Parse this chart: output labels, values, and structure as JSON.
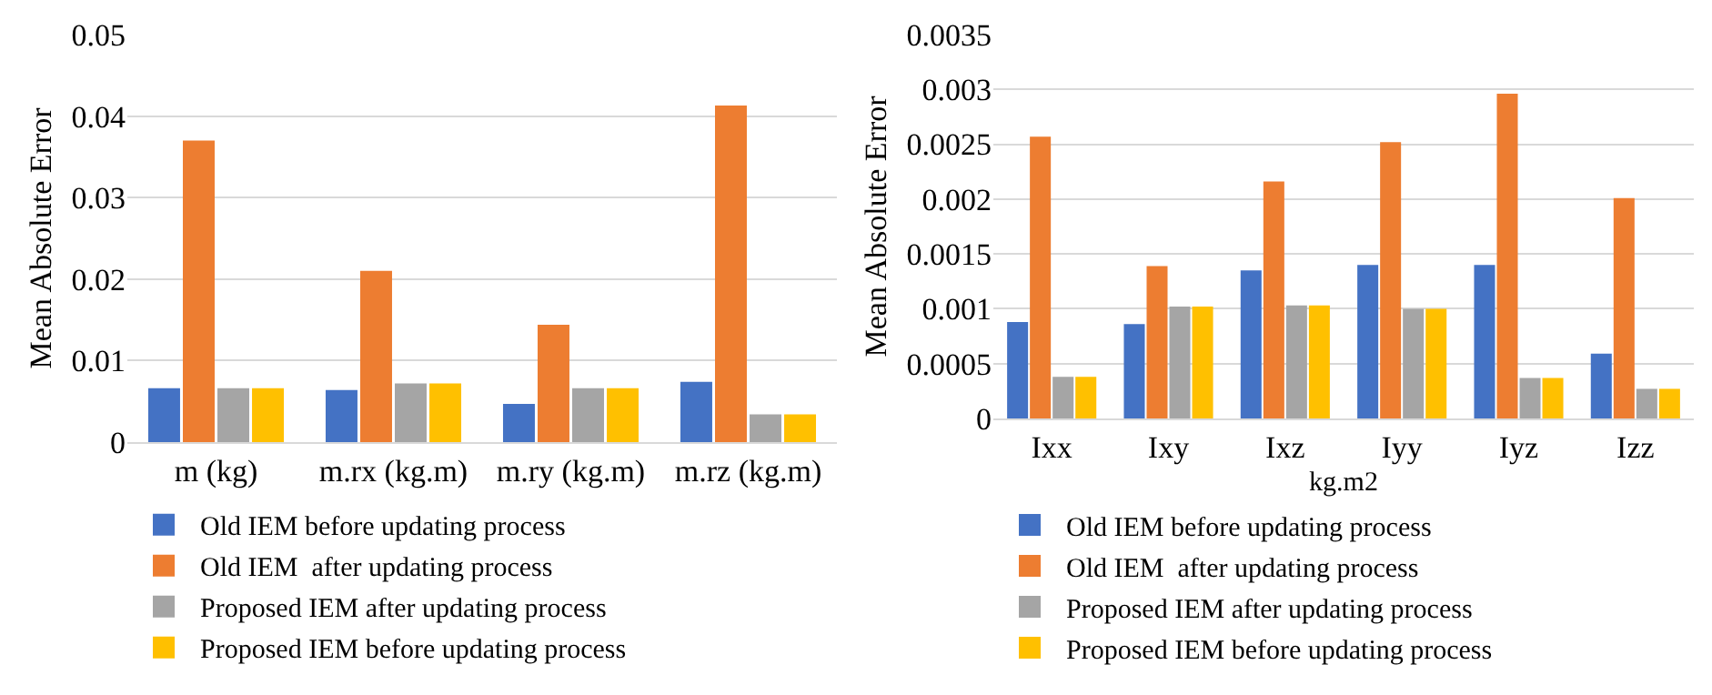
{
  "chart_data": [
    {
      "type": "bar",
      "ylabel": "Mean Absolute Error",
      "categories": [
        "m (kg)",
        "m.rx (kg.m)",
        "m.ry (kg.m)",
        "m.rz (kg.m)"
      ],
      "ylim": [
        0,
        0.05
      ],
      "yticks": [
        0,
        0.01,
        0.02,
        0.03,
        0.04,
        0.05
      ],
      "grid": "y",
      "legend": "bottom",
      "series": [
        {
          "name": "Old IEM before updating process",
          "color": "#4472c4",
          "values": [
            0.0066,
            0.0064,
            0.0047,
            0.0074
          ]
        },
        {
          "name": "Old IEM  after updating process",
          "color": "#ed7d31",
          "values": [
            0.037,
            0.021,
            0.0144,
            0.0413
          ]
        },
        {
          "name": "Proposed IEM after updating process",
          "color": "#a5a5a5",
          "values": [
            0.0066,
            0.0072,
            0.0066,
            0.0034
          ]
        },
        {
          "name": "Proposed IEM before updating process",
          "color": "#ffc000",
          "values": [
            0.0066,
            0.0072,
            0.0066,
            0.0034
          ]
        }
      ]
    },
    {
      "type": "bar",
      "ylabel": "Mean Absolute Error",
      "xlabel": "kg.m2",
      "categories": [
        "Ixx",
        "Ixy",
        "Ixz",
        "Iyy",
        "Iyz",
        "Izz"
      ],
      "ylim": [
        0,
        0.0035
      ],
      "yticks": [
        0,
        0.0005,
        0.001,
        0.0015,
        0.002,
        0.0025,
        0.003,
        0.0035
      ],
      "grid": "y",
      "legend": "bottom",
      "series": [
        {
          "name": "Old IEM before updating process",
          "color": "#4472c4",
          "values": [
            0.00088,
            0.00086,
            0.00135,
            0.0014,
            0.0014,
            0.00059
          ]
        },
        {
          "name": "Old IEM  after updating process",
          "color": "#ed7d31",
          "values": [
            0.00257,
            0.00139,
            0.00216,
            0.00252,
            0.00296,
            0.00201
          ]
        },
        {
          "name": "Proposed IEM after updating process",
          "color": "#a5a5a5",
          "values": [
            0.00038,
            0.00102,
            0.00103,
            0.001,
            0.00037,
            0.00027
          ]
        },
        {
          "name": "Proposed IEM before updating process",
          "color": "#ffc000",
          "values": [
            0.00038,
            0.00102,
            0.00103,
            0.001,
            0.00037,
            0.00027
          ]
        }
      ]
    }
  ]
}
